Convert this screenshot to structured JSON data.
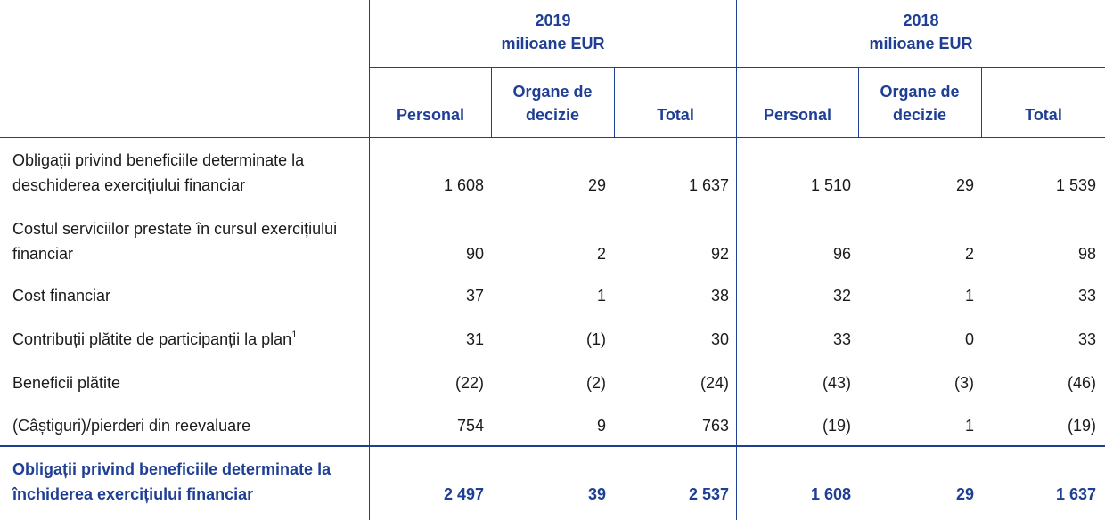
{
  "years": [
    {
      "year": "2019",
      "unit": "milioane EUR"
    },
    {
      "year": "2018",
      "unit": "milioane EUR"
    }
  ],
  "subheaders": [
    "Personal",
    "Organe de decizie",
    "Total",
    "Personal",
    "Organe de decizie",
    "Total"
  ],
  "rows": [
    {
      "label": "Obligații privind beneficiile determinate la deschiderea exercițiului financiar",
      "values": [
        "1 608",
        "29",
        "1 637",
        "1 510",
        "29",
        "1 539"
      ]
    },
    {
      "label": "Costul serviciilor prestate în cursul exercițiului financiar",
      "values": [
        "90",
        "2",
        "92",
        "96",
        "2",
        "98"
      ]
    },
    {
      "label": "Cost financiar",
      "values": [
        "37",
        "1",
        "38",
        "32",
        "1",
        "33"
      ]
    },
    {
      "label": "Contribuții plătite de participanții la plan",
      "footnote": "1",
      "values": [
        "31",
        "(1)",
        "30",
        "33",
        "0",
        "33"
      ]
    },
    {
      "label": "Beneficii plătite",
      "values": [
        "(22)",
        "(2)",
        "(24)",
        "(43)",
        "(3)",
        "(46)"
      ]
    },
    {
      "label": "(Câștiguri)/pierderi din reevaluare",
      "values": [
        "754",
        "9",
        "763",
        "(19)",
        "1",
        "(19)"
      ]
    }
  ],
  "total": {
    "label": "Obligații privind beneficiile determinate la închiderea exercițiului financiar",
    "values": [
      "2 497",
      "39",
      "2 537",
      "1 608",
      "29",
      "1 637"
    ]
  },
  "colors": {
    "accent": "#1f3f95",
    "text": "#1a1a1a"
  }
}
